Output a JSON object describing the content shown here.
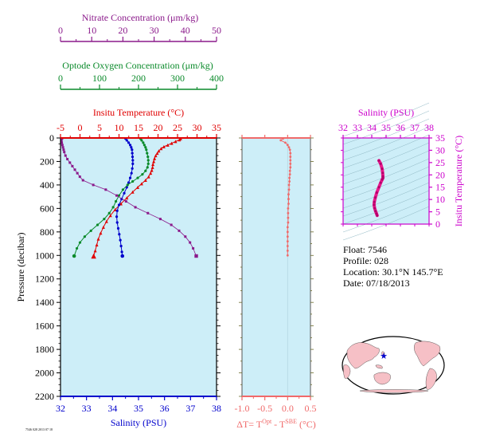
{
  "colors": {
    "nitrate": "#8b1a8b",
    "oxygen": "#0a8a2a",
    "temperature": "#e00000",
    "salinity": "#0000cc",
    "dt": "#f06a6a",
    "ts": "#cc00cc",
    "ts_trace": "#e8198c",
    "panel_bg": "#cdeef8",
    "map_land": "#f6c0c6",
    "map_ocean": "#ffffff"
  },
  "info": {
    "float_line": "Float:  7546",
    "profile_line": "Profile:  028",
    "location_line": "Location:  30.1°N  145.7°E",
    "date_line": "Date:  07/18/2013"
  },
  "footer_note": "7546 028 2013 07 18",
  "chart_data": [
    {
      "type": "line",
      "panel": "main-profile",
      "ylabel": "Pressure (decibar)",
      "ylim": [
        2200,
        0
      ],
      "yticks": [
        "0",
        "200",
        "400",
        "600",
        "800",
        "1000",
        "1200",
        "1400",
        "1600",
        "1800",
        "2000",
        "2200"
      ],
      "grid": false,
      "axes": {
        "nitrate": {
          "label": "Nitrate Concentration (μm/kg)",
          "range": [
            0,
            50
          ],
          "ticks": [
            "0",
            "10",
            "20",
            "30",
            "40",
            "50"
          ]
        },
        "oxygen": {
          "label": "Optode Oxygen Concentration (μm/kg)",
          "range": [
            0,
            400
          ],
          "ticks": [
            "0",
            "100",
            "200",
            "300",
            "400"
          ]
        },
        "temperature": {
          "label": "Insitu Temperature (°C)",
          "range": [
            -5,
            35
          ],
          "ticks": [
            "-5",
            "0",
            "5",
            "10",
            "15",
            "20",
            "25",
            "30",
            "35"
          ]
        },
        "salinity": {
          "label": "Salinity (PSU)",
          "range": [
            32,
            38
          ],
          "ticks": [
            "32",
            "33",
            "34",
            "35",
            "36",
            "37",
            "38"
          ]
        }
      },
      "series": [
        {
          "key": "temperature",
          "values": [
            [
              25.8,
              5
            ],
            [
              25.5,
              15
            ],
            [
              24.5,
              30
            ],
            [
              23.5,
              45
            ],
            [
              22.5,
              60
            ],
            [
              21.5,
              75
            ],
            [
              20.8,
              90
            ],
            [
              20.2,
              110
            ],
            [
              19.8,
              130
            ],
            [
              19.4,
              150
            ],
            [
              19.1,
              175
            ],
            [
              18.9,
              200
            ],
            [
              18.7,
              225
            ],
            [
              18.6,
              250
            ],
            [
              18.4,
              275
            ],
            [
              18.1,
              300
            ],
            [
              17.6,
              330
            ],
            [
              16.8,
              360
            ],
            [
              15.8,
              390
            ],
            [
              14.8,
              420
            ],
            [
              13.5,
              460
            ],
            [
              12.0,
              510
            ],
            [
              10.5,
              560
            ],
            [
              9.0,
              610
            ],
            [
              7.8,
              660
            ],
            [
              6.8,
              710
            ],
            [
              6.0,
              760
            ],
            [
              5.3,
              810
            ],
            [
              4.7,
              860
            ],
            [
              4.3,
              910
            ],
            [
              3.9,
              960
            ],
            [
              3.5,
              1005
            ]
          ]
        },
        {
          "key": "salinity",
          "values": [
            [
              34.5,
              5
            ],
            [
              34.55,
              20
            ],
            [
              34.62,
              40
            ],
            [
              34.68,
              60
            ],
            [
              34.72,
              80
            ],
            [
              34.75,
              100
            ],
            [
              34.76,
              130
            ],
            [
              34.77,
              160
            ],
            [
              34.78,
              190
            ],
            [
              34.78,
              220
            ],
            [
              34.76,
              260
            ],
            [
              34.73,
              300
            ],
            [
              34.68,
              340
            ],
            [
              34.62,
              380
            ],
            [
              34.55,
              420
            ],
            [
              34.45,
              470
            ],
            [
              34.35,
              520
            ],
            [
              34.25,
              570
            ],
            [
              34.18,
              620
            ],
            [
              34.16,
              670
            ],
            [
              34.18,
              720
            ],
            [
              34.22,
              770
            ],
            [
              34.26,
              820
            ],
            [
              34.3,
              870
            ],
            [
              34.33,
              920
            ],
            [
              34.36,
              970
            ],
            [
              34.38,
              1005
            ]
          ]
        },
        {
          "key": "oxygen",
          "values": [
            [
              205,
              5
            ],
            [
              208,
              20
            ],
            [
              212,
              40
            ],
            [
              215,
              60
            ],
            [
              218,
              80
            ],
            [
              220,
              100
            ],
            [
              222,
              130
            ],
            [
              224,
              160
            ],
            [
              225,
              190
            ],
            [
              225,
              220
            ],
            [
              223,
              250
            ],
            [
              218,
              280
            ],
            [
              210,
              310
            ],
            [
              198,
              340
            ],
            [
              185,
              370
            ],
            [
              172,
              400
            ],
            [
              160,
              440
            ],
            [
              150,
              490
            ],
            [
              142,
              540
            ],
            [
              135,
              590
            ],
            [
              125,
              640
            ],
            [
              112,
              690
            ],
            [
              95,
              740
            ],
            [
              78,
              790
            ],
            [
              62,
              840
            ],
            [
              50,
              890
            ],
            [
              42,
              940
            ],
            [
              35,
              1005
            ]
          ]
        },
        {
          "key": "nitrate",
          "values": [
            [
              0.5,
              5
            ],
            [
              0.3,
              20
            ],
            [
              0.4,
              40
            ],
            [
              0.6,
              60
            ],
            [
              0.8,
              80
            ],
            [
              1.0,
              100
            ],
            [
              1.2,
              120
            ],
            [
              1.6,
              150
            ],
            [
              2.2,
              180
            ],
            [
              3.0,
              210
            ],
            [
              3.8,
              240
            ],
            [
              4.6,
              270
            ],
            [
              5.4,
              300
            ],
            [
              6.2,
              330
            ],
            [
              7.2,
              360
            ],
            [
              10.5,
              400
            ],
            [
              14.5,
              440
            ],
            [
              18.0,
              490
            ],
            [
              21.0,
              540
            ],
            [
              24.0,
              590
            ],
            [
              28.0,
              640
            ],
            [
              32.0,
              690
            ],
            [
              35.5,
              740
            ],
            [
              38.0,
              790
            ],
            [
              40.0,
              840
            ],
            [
              41.5,
              890
            ],
            [
              42.5,
              940
            ],
            [
              43.5,
              1005
            ]
          ]
        }
      ]
    },
    {
      "type": "line",
      "panel": "delta-t",
      "xlabel": "ΔT= T^Opt - T^SBE (°C)",
      "xlim": [
        -1.0,
        0.5
      ],
      "xticks": [
        "-1.0",
        "-0.5",
        "0.0",
        "0.5"
      ],
      "ylim": [
        2200,
        0
      ],
      "series": [
        {
          "key": "dt",
          "values": [
            [
              -0.1,
              5
            ],
            [
              -0.15,
              20
            ],
            [
              -0.05,
              40
            ],
            [
              0.0,
              60
            ],
            [
              0.03,
              80
            ],
            [
              0.05,
              100
            ],
            [
              0.06,
              130
            ],
            [
              0.06,
              160
            ],
            [
              0.06,
              190
            ],
            [
              0.06,
              220
            ],
            [
              0.06,
              250
            ],
            [
              0.05,
              280
            ],
            [
              0.05,
              310
            ],
            [
              0.04,
              340
            ],
            [
              0.04,
              370
            ],
            [
              0.03,
              400
            ],
            [
              0.03,
              440
            ],
            [
              0.02,
              480
            ],
            [
              0.02,
              520
            ],
            [
              0.02,
              560
            ],
            [
              0.01,
              600
            ],
            [
              0.01,
              640
            ],
            [
              0.01,
              680
            ],
            [
              0.01,
              720
            ],
            [
              0.0,
              760
            ],
            [
              0.0,
              800
            ],
            [
              0.0,
              840
            ],
            [
              0.0,
              880
            ],
            [
              0.0,
              920
            ],
            [
              0.0,
              960
            ],
            [
              0.0,
              1000
            ]
          ]
        }
      ]
    },
    {
      "type": "line",
      "panel": "ts-diagram",
      "title": "Salinity (PSU)",
      "ylabel": "Insitu Temperature (°C)",
      "xlim": [
        32,
        38
      ],
      "xticks": [
        "32",
        "33",
        "34",
        "35",
        "36",
        "37",
        "38"
      ],
      "ylim": [
        0,
        35
      ],
      "yticks": [
        "0",
        "5",
        "10",
        "15",
        "20",
        "25",
        "30",
        "35"
      ],
      "series": [
        {
          "key": "ts",
          "values": [
            [
              34.5,
              25.8
            ],
            [
              34.62,
              24.5
            ],
            [
              34.72,
              22.5
            ],
            [
              34.76,
              20.8
            ],
            [
              34.78,
              19.4
            ],
            [
              34.78,
              18.7
            ],
            [
              34.73,
              18.1
            ],
            [
              34.62,
              16.8
            ],
            [
              34.5,
              15.0
            ],
            [
              34.35,
              12.8
            ],
            [
              34.25,
              10.8
            ],
            [
              34.18,
              9.0
            ],
            [
              34.16,
              7.8
            ],
            [
              34.2,
              6.5
            ],
            [
              34.26,
              5.3
            ],
            [
              34.33,
              4.3
            ],
            [
              34.38,
              3.5
            ]
          ]
        }
      ]
    }
  ],
  "map": {
    "float_position": {
      "lon": 145.7,
      "lat": 30.1
    }
  }
}
